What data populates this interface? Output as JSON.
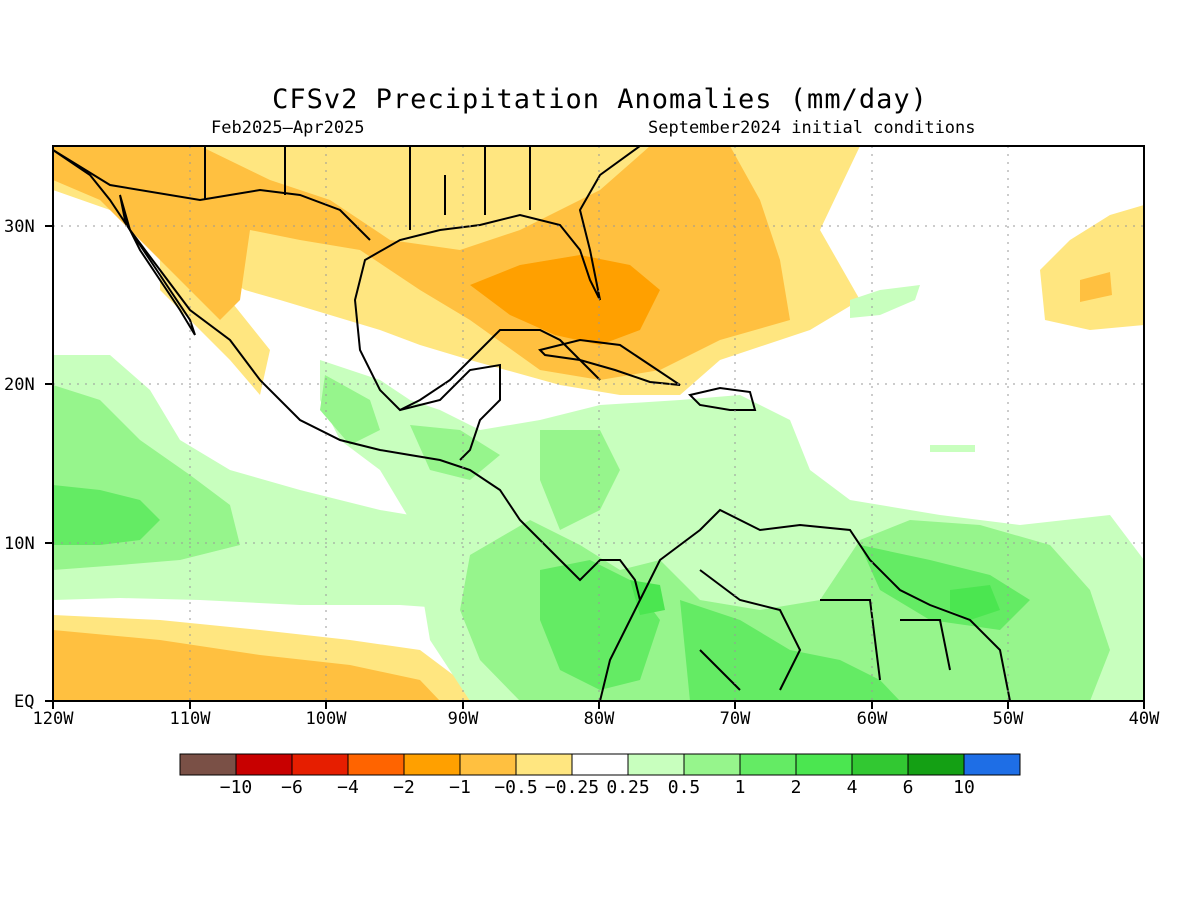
{
  "title": "CFSv2 Precipitation Anomalies (mm/day)",
  "period": "Feb2025–Apr2025",
  "initial_conditions": "September2024 initial conditions",
  "latitude_labels": [
    "30N",
    "20N",
    "10N",
    "EQ"
  ],
  "longitude_labels": [
    "120W",
    "110W",
    "100W",
    "90W",
    "80W",
    "70W",
    "60W",
    "50W",
    "40W"
  ],
  "colorbar": {
    "labels": [
      "−10",
      "−6",
      "−4",
      "−2",
      "−1",
      "−0.5",
      "−0.25",
      "0.25",
      "0.5",
      "1",
      "2",
      "4",
      "6",
      "10"
    ],
    "colors": [
      "#7a5046",
      "#c80000",
      "#e61e00",
      "#ff6400",
      "#ffa000",
      "#ffc040",
      "#ffe680",
      "#ffffff",
      "#c8ffbe",
      "#96f58c",
      "#64eb64",
      "#4be650",
      "#32c832",
      "#14a014",
      "#1e6ee6"
    ]
  },
  "map_colors": {
    "dry_light": "#ffe680",
    "dry_mid": "#ffc040",
    "dry_strong": "#ffa000",
    "wet_light": "#c8ffbe",
    "wet_mid": "#96f58c",
    "wet_strong": "#64eb64",
    "wet_stronger": "#4be650"
  }
}
